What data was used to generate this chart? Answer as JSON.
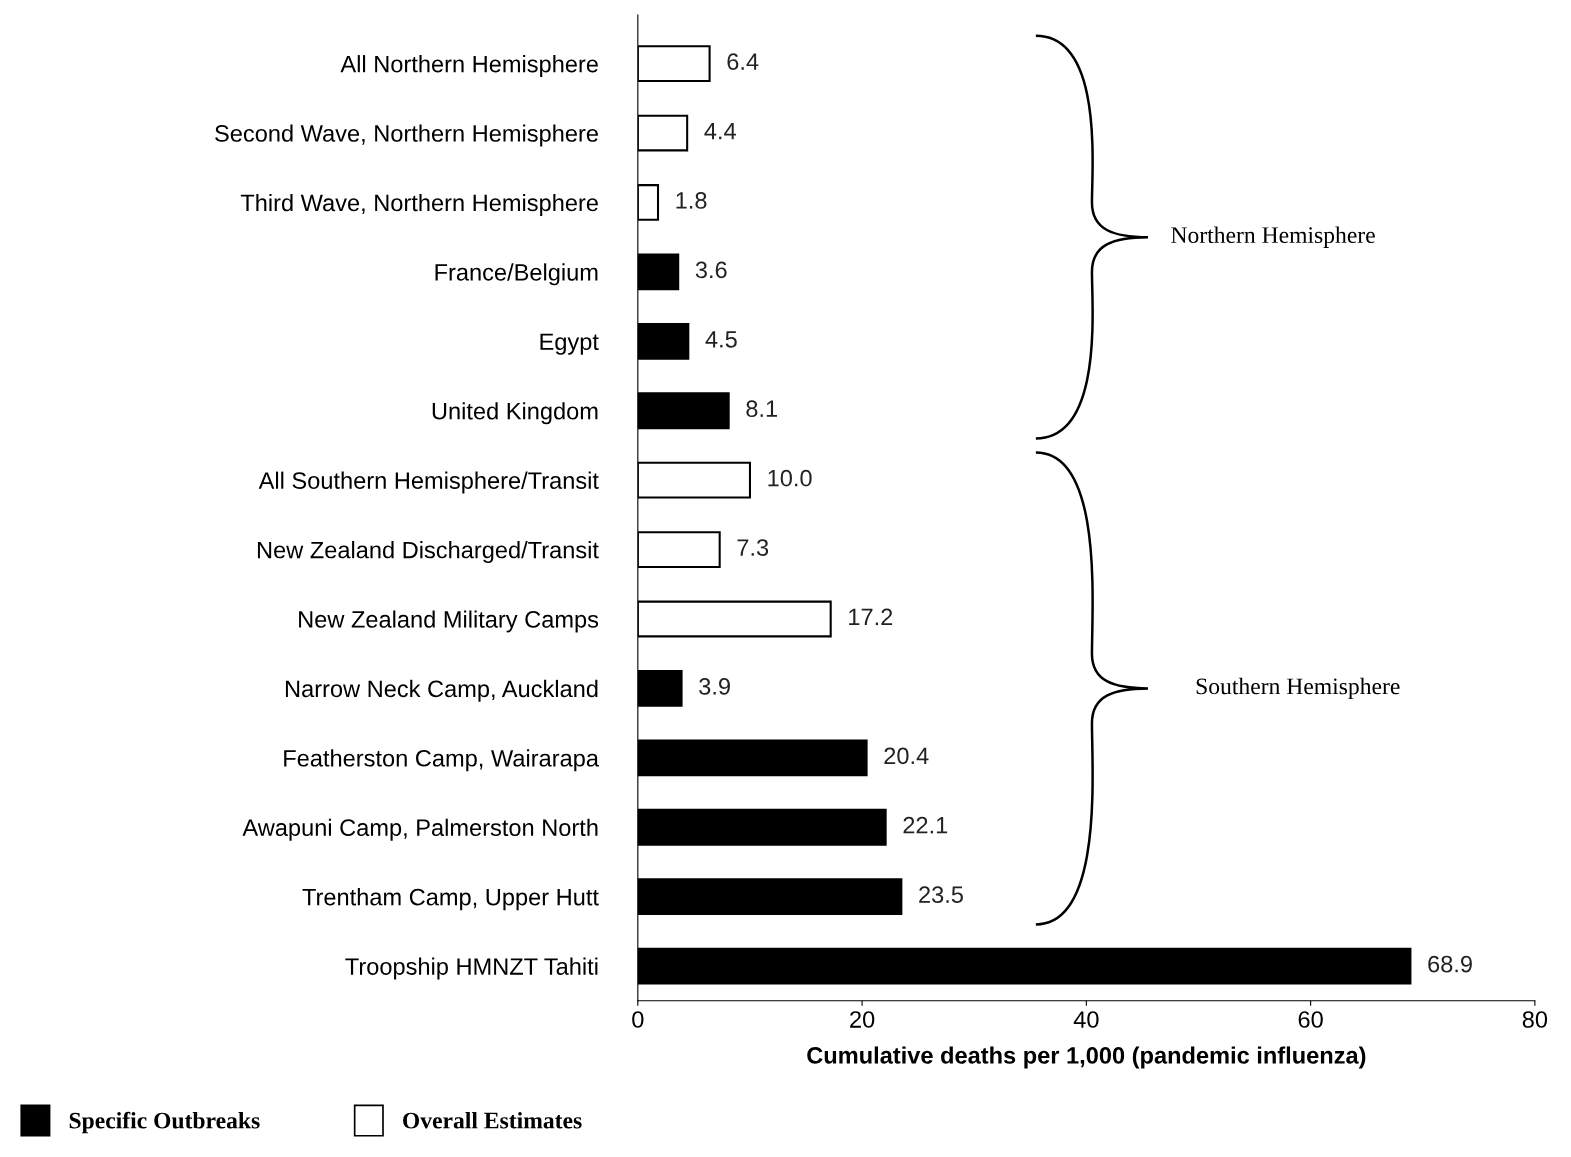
{
  "chart_data": {
    "type": "bar",
    "orientation": "horizontal",
    "categories": [
      "All Northern Hemisphere",
      "Second Wave, Northern Hemisphere",
      "Third Wave, Northern Hemisphere",
      "France/Belgium",
      "Egypt",
      "United Kingdom",
      "All Southern Hemisphere/Transit",
      "New Zealand Discharged/Transit",
      "New Zealand Military Camps",
      "Narrow Neck Camp, Auckland",
      "Featherston Camp, Wairarapa",
      "Awapuni Camp, Palmerston North",
      "Trentham Camp, Upper Hutt",
      "Troopship HMNZT Tahiti"
    ],
    "series": [
      {
        "name": "Specific Outbreaks",
        "color": "#000000",
        "values": [
          null,
          null,
          null,
          3.6,
          4.5,
          8.1,
          null,
          null,
          null,
          3.9,
          20.4,
          22.1,
          23.5,
          68.9
        ],
        "value_labels": [
          null,
          null,
          null,
          "3.6",
          "4.5",
          "8.1",
          null,
          null,
          null,
          "3.9",
          "20.4",
          "22.1",
          "23.5",
          "68.9"
        ]
      },
      {
        "name": "Overall Estimates",
        "color": "#ffffff",
        "values": [
          6.4,
          4.4,
          1.8,
          null,
          null,
          null,
          10.0,
          7.3,
          17.2,
          null,
          null,
          null,
          null,
          null
        ],
        "value_labels": [
          "6.4",
          "4.4",
          "1.8",
          null,
          null,
          null,
          "10.0",
          "7.3",
          "17.2",
          null,
          null,
          null,
          null,
          null
        ]
      }
    ],
    "xlim": [
      0,
      80
    ],
    "xticks": [
      0,
      20,
      40,
      60,
      80
    ],
    "xlabel": "Cumulative deaths per 1,000 (pandemic influenza)",
    "annotations": [
      "Northern Hemisphere",
      "Southern Hemisphere"
    ],
    "grid": false,
    "legend": "bottom left"
  }
}
